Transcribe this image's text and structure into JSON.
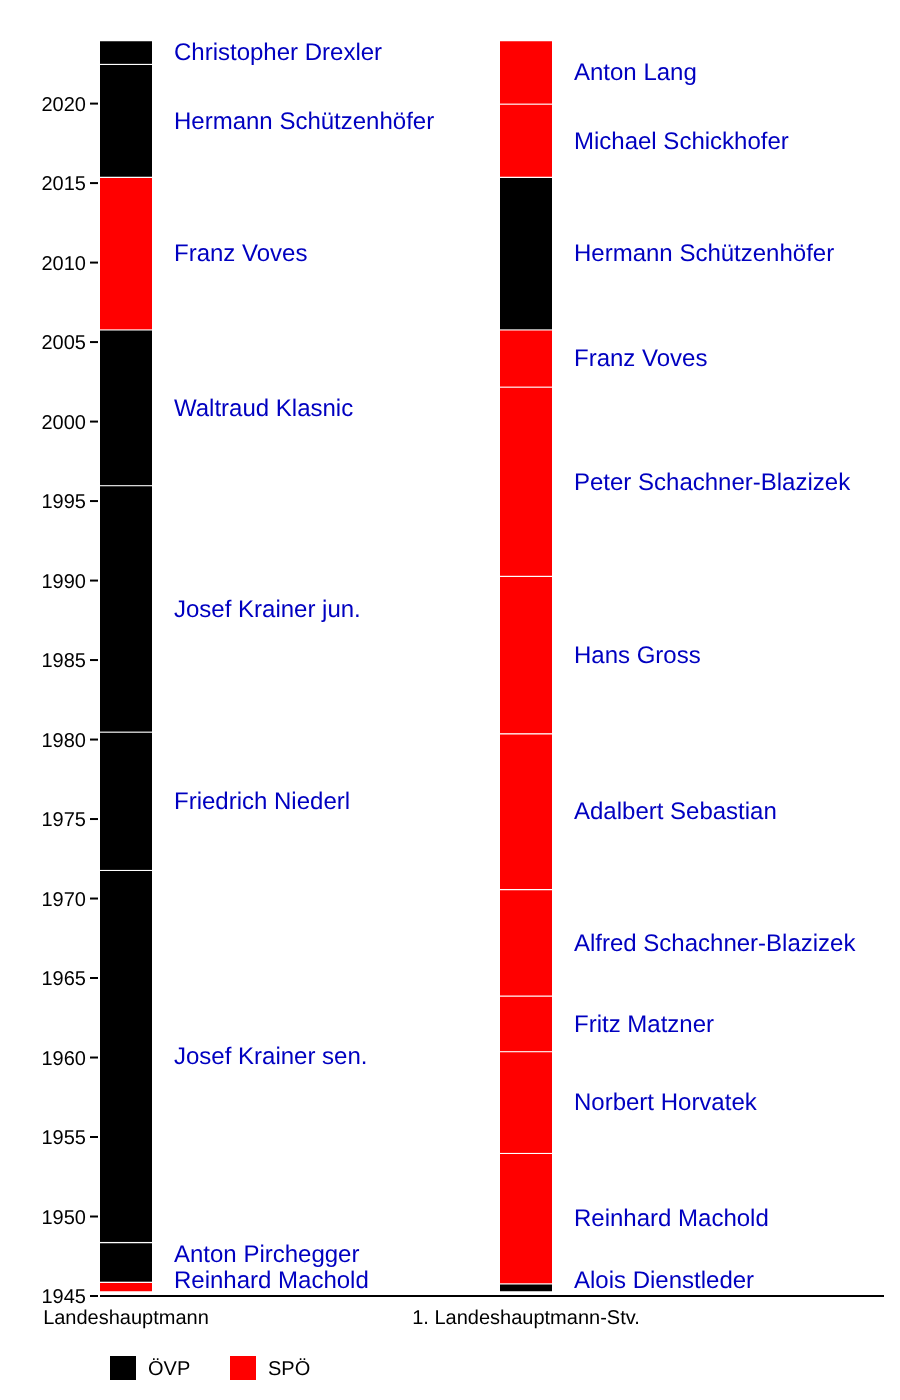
{
  "chart_data": {
    "type": "bar",
    "categories": [
      "Landeshauptmann",
      "1. Landeshauptmann-Stv."
    ],
    "ylim": [
      1945,
      2024
    ],
    "yticks": [
      1945,
      1950,
      1955,
      1960,
      1965,
      1970,
      1975,
      1980,
      1985,
      1990,
      1995,
      2000,
      2005,
      2010,
      2015,
      2020
    ],
    "grid": false,
    "legend": "bottom",
    "series": [
      {
        "name": "Reinhard Machold",
        "color": "#ff0000",
        "values": [
          0.6,
          null
        ],
        "base": [
          1945.3,
          null
        ]
      },
      {
        "name": "Anton Pirchegger",
        "color": "#000000",
        "values": [
          2.5,
          null
        ],
        "base": [
          1945.9,
          null
        ]
      },
      {
        "name": "Josef Krainer sen.",
        "color": "#000000",
        "values": [
          23.4,
          null
        ],
        "base": [
          1948.4,
          null
        ]
      },
      {
        "name": "Friedrich Niederl",
        "color": "#000000",
        "values": [
          8.7,
          null
        ],
        "base": [
          1971.8,
          null
        ]
      },
      {
        "name": "Josef Krainer jun.",
        "color": "#000000",
        "values": [
          15.5,
          null
        ],
        "base": [
          1980.5,
          null
        ]
      },
      {
        "name": "Waltraud Klasnic",
        "color": "#000000",
        "values": [
          9.8,
          null
        ],
        "base": [
          1996.0,
          null
        ]
      },
      {
        "name": "Franz Voves",
        "color": "#ff0000",
        "values": [
          9.6,
          null
        ],
        "base": [
          2005.8,
          null
        ]
      },
      {
        "name": "Hermann Schützenhöfer",
        "color": "#000000",
        "values": [
          7.1,
          null
        ],
        "base": [
          2015.4,
          null
        ]
      },
      {
        "name": "Christopher Drexler",
        "color": "#000000",
        "values": [
          1.5,
          null
        ],
        "base": [
          2022.5,
          null
        ]
      },
      {
        "name": "Alois Dienstleder",
        "color": "#000000",
        "values": [
          null,
          0.5
        ],
        "base": [
          null,
          1945.3
        ]
      },
      {
        "name": "Reinhard Machold",
        "color": "#ff0000",
        "values": [
          null,
          8.2
        ],
        "base": [
          null,
          1945.8
        ]
      },
      {
        "name": "Norbert Horvatek",
        "color": "#ff0000",
        "values": [
          null,
          6.4
        ],
        "base": [
          null,
          1954.0
        ]
      },
      {
        "name": "Fritz Matzner",
        "color": "#ff0000",
        "values": [
          null,
          3.5
        ],
        "base": [
          null,
          1960.4
        ]
      },
      {
        "name": "Alfred Schachner-Blazizek",
        "color": "#ff0000",
        "values": [
          null,
          6.7
        ],
        "base": [
          null,
          1963.9
        ]
      },
      {
        "name": "Adalbert Sebastian",
        "color": "#ff0000",
        "values": [
          null,
          9.8
        ],
        "base": [
          null,
          1970.6
        ]
      },
      {
        "name": "Hans Gross",
        "color": "#ff0000",
        "values": [
          null,
          9.9
        ],
        "base": [
          null,
          1980.4
        ]
      },
      {
        "name": "Peter Schachner-Blazizek",
        "color": "#ff0000",
        "values": [
          null,
          11.9
        ],
        "base": [
          null,
          1990.3
        ]
      },
      {
        "name": "Franz Voves",
        "color": "#ff0000",
        "values": [
          null,
          3.6
        ],
        "base": [
          null,
          2002.2
        ]
      },
      {
        "name": "Hermann Schützenhöfer",
        "color": "#000000",
        "values": [
          null,
          9.6
        ],
        "base": [
          null,
          2005.8
        ]
      },
      {
        "name": "Michael Schickhofer",
        "color": "#ff0000",
        "values": [
          null,
          4.6
        ],
        "base": [
          null,
          2015.4
        ]
      },
      {
        "name": "Anton Lang",
        "color": "#ff0000",
        "values": [
          null,
          4.0
        ],
        "base": [
          null,
          2020.0
        ]
      },
      {
        "name": "ÖVP",
        "color": "#000000",
        "values": [
          null,
          null
        ]
      },
      {
        "name": "SPÖ",
        "color": "#ff0000",
        "values": [
          null,
          null
        ]
      }
    ]
  }
}
